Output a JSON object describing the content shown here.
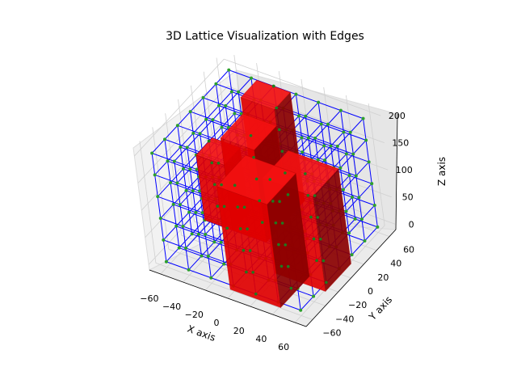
{
  "chart_data": {
    "type": "3d-voxel-lattice",
    "title": "3D Lattice Visualization with Edges",
    "xlabel": "X axis",
    "ylabel": "Y axis",
    "zlabel": "Z axis",
    "x_ticks": [
      "−60",
      "−40",
      "−20",
      "0",
      "20",
      "40",
      "60"
    ],
    "y_ticks": [
      "−60",
      "−40",
      "−20",
      "0",
      "20",
      "40",
      "60"
    ],
    "z_ticks": [
      "0",
      "50",
      "100",
      "150",
      "200"
    ],
    "xlim": [
      -70,
      70
    ],
    "ylim": [
      -70,
      70
    ],
    "zlim": [
      -10,
      215
    ],
    "grid": true,
    "colors": {
      "edges": "#0000ff",
      "nodes": "#2ca02c",
      "voxels": "#ff0000"
    }
  }
}
